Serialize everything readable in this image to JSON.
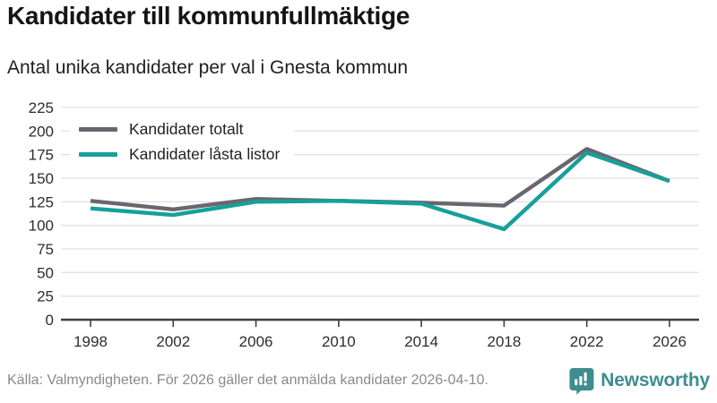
{
  "header": {
    "title": "Kandidater till kommunfullmäktige",
    "subtitle": "Antal unika kandidater per val i Gnesta kommun"
  },
  "chart_data": {
    "type": "line",
    "categories": [
      "1998",
      "2002",
      "2006",
      "2010",
      "2014",
      "2018",
      "2022",
      "2026"
    ],
    "series": [
      {
        "name": "Kandidater totalt",
        "color": "#6a666f",
        "values": [
          126,
          117,
          128,
          126,
          124,
          121,
          181,
          147
        ]
      },
      {
        "name": "Kandidater låsta listor",
        "color": "#16a09a",
        "values": [
          118,
          111,
          125,
          126,
          123,
          96,
          177,
          147
        ]
      }
    ],
    "title": "Kandidater till kommunfullmäktige",
    "subtitle": "Antal unika kandidater per val i Gnesta kommun",
    "xlabel": "",
    "ylabel": "",
    "ylim": [
      0,
      225
    ],
    "yticks": [
      0,
      25,
      50,
      75,
      100,
      125,
      150,
      175,
      200,
      225
    ],
    "grid": true,
    "legend_position": "top-left-inside"
  },
  "footer": {
    "source": "Källa: Valmyndigheten. För 2026 gäller det anmälda kandidater 2026-04-10.",
    "brand": "Newsworthy"
  },
  "icons": {
    "brand_icon": "speech-bubble-bar-chart-icon"
  },
  "colors": {
    "background": "#ffffff",
    "grid": "#e2e2e2",
    "axis": "#3f3f3f",
    "tick_label": "#2d2d2d",
    "series_total": "#6a666f",
    "series_locked": "#16a09a",
    "source_text": "#8a8a8a",
    "brand": "#3e8d90"
  }
}
